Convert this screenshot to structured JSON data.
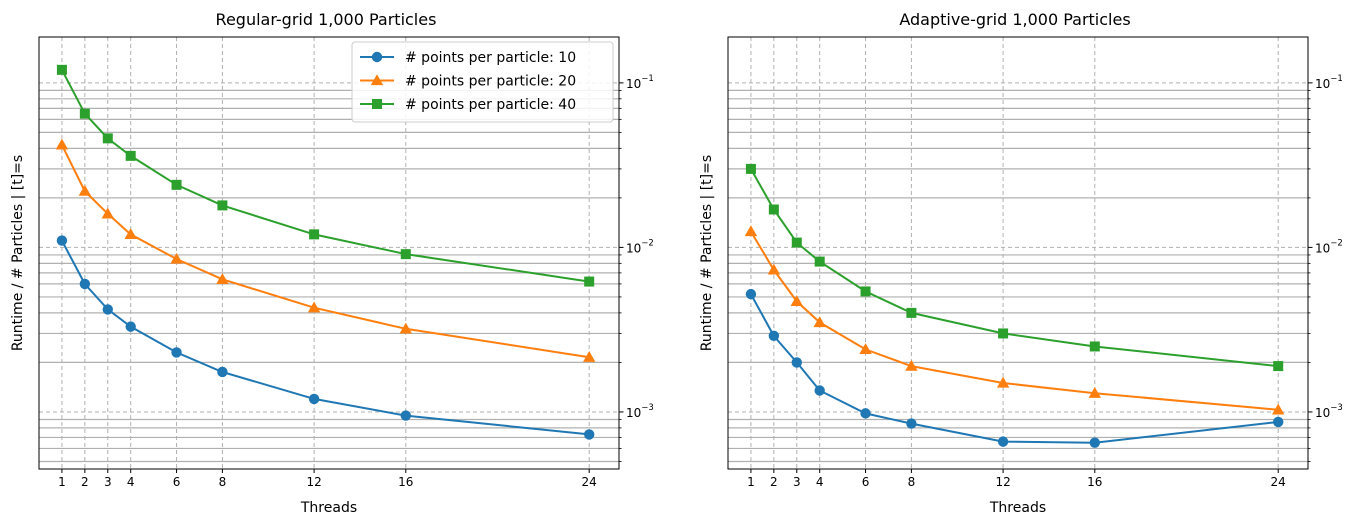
{
  "chart_data": [
    {
      "type": "line",
      "title": "Regular-grid 1,000 Particles",
      "xlabel": "Threads",
      "ylabel": "Runtime / # Particles | [t]=s",
      "x": [
        1,
        2,
        3,
        4,
        6,
        8,
        12,
        16,
        24
      ],
      "x_ticks": [
        "1",
        "2",
        "3",
        "4",
        "6",
        "8",
        "12",
        "16",
        "24"
      ],
      "xlim": [
        0,
        25.3
      ],
      "yscale": "log",
      "ylim": [
        0.00045,
        0.19
      ],
      "y_ticks": [
        0.001,
        0.01,
        0.1
      ],
      "y_tick_labels": [
        {
          "base": "10",
          "exp": "−3"
        },
        {
          "base": "10",
          "exp": "−2"
        },
        {
          "base": "10",
          "exp": "−1"
        }
      ],
      "y_axis_side": "right",
      "grid": true,
      "legend": "top-right",
      "series": [
        {
          "name": "# points per particle: 10",
          "color": "#1f77b4",
          "marker": "circle",
          "values": [
            0.011,
            0.006,
            0.0042,
            0.0033,
            0.0023,
            0.00175,
            0.0012,
            0.00095,
            0.00073
          ]
        },
        {
          "name": "# points per particle: 20",
          "color": "#ff7f0e",
          "marker": "triangle",
          "values": [
            0.042,
            0.022,
            0.016,
            0.012,
            0.0085,
            0.0064,
            0.0043,
            0.0032,
            0.00215
          ]
        },
        {
          "name": "# points per particle: 40",
          "color": "#2ca02c",
          "marker": "square",
          "values": [
            0.12,
            0.065,
            0.046,
            0.036,
            0.024,
            0.018,
            0.012,
            0.0091,
            0.0062
          ]
        }
      ]
    },
    {
      "type": "line",
      "title": "Adaptive-grid 1,000 Particles",
      "xlabel": "Threads",
      "ylabel": "Runtime / # Particles | [t]=s",
      "x": [
        1,
        2,
        3,
        4,
        6,
        8,
        12,
        16,
        24
      ],
      "x_ticks": [
        "1",
        "2",
        "3",
        "4",
        "6",
        "8",
        "12",
        "16",
        "24"
      ],
      "xlim": [
        0,
        25.3
      ],
      "yscale": "log",
      "ylim": [
        0.00045,
        0.19
      ],
      "y_ticks": [
        0.001,
        0.01,
        0.1
      ],
      "y_tick_labels": [
        {
          "base": "10",
          "exp": "−3"
        },
        {
          "base": "10",
          "exp": "−2"
        },
        {
          "base": "10",
          "exp": "−1"
        }
      ],
      "y_axis_side": "right",
      "grid": true,
      "legend": "none",
      "series": [
        {
          "color": "#1f77b4",
          "marker": "circle",
          "values": [
            0.0052,
            0.0029,
            0.002,
            0.00135,
            0.00098,
            0.00085,
            0.00066,
            0.00065,
            0.00087
          ]
        },
        {
          "color": "#ff7f0e",
          "marker": "triangle",
          "values": [
            0.0125,
            0.0073,
            0.0047,
            0.0035,
            0.0024,
            0.0019,
            0.0015,
            0.0013,
            0.00103
          ]
        },
        {
          "color": "#2ca02c",
          "marker": "square",
          "values": [
            0.03,
            0.017,
            0.0107,
            0.0082,
            0.0054,
            0.004,
            0.003,
            0.0025,
            0.0019
          ]
        }
      ]
    }
  ]
}
